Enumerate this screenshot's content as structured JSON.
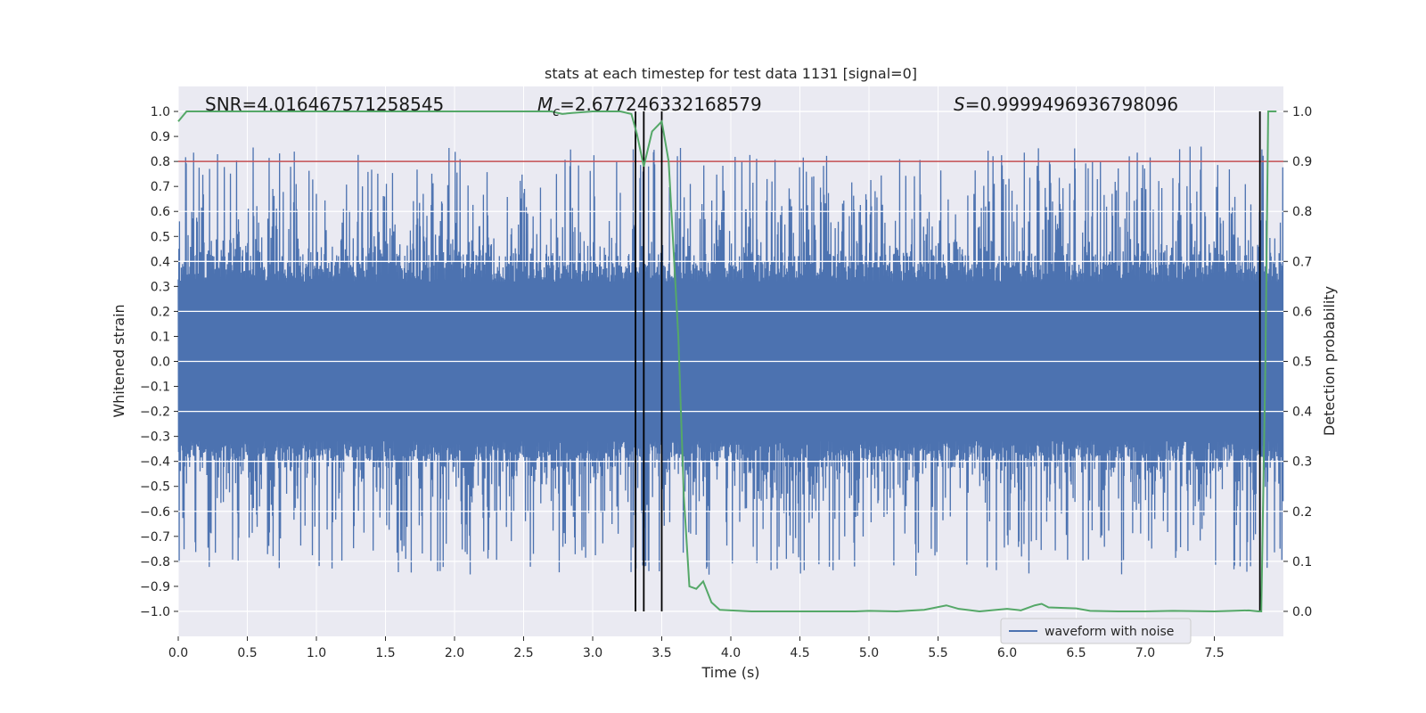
{
  "chart_data": {
    "type": "line",
    "title": "stats at each timestep for test data 1131 [signal=0]",
    "xlabel": "Time (s)",
    "ylabel": "Whitened strain",
    "y2label": "Detection probability",
    "xlim": [
      0.0,
      8.0
    ],
    "ylim": [
      -1.1,
      1.1
    ],
    "y2lim": [
      -0.05,
      1.05
    ],
    "xticks": [
      0.0,
      0.5,
      1.0,
      1.5,
      2.0,
      2.5,
      3.0,
      3.5,
      4.0,
      4.5,
      5.0,
      5.5,
      6.0,
      6.5,
      7.0,
      7.5
    ],
    "yticks": [
      -1.0,
      -0.9,
      -0.8,
      -0.7,
      -0.6,
      -0.5,
      -0.4,
      -0.3,
      -0.2,
      -0.1,
      0.0,
      0.1,
      0.2,
      0.3,
      0.4,
      0.5,
      0.6,
      0.7,
      0.8,
      0.9,
      1.0
    ],
    "y2ticks": [
      0.0,
      0.1,
      0.2,
      0.3,
      0.4,
      0.5,
      0.6,
      0.7,
      0.8,
      0.9,
      1.0
    ],
    "grid": true,
    "annotations": {
      "snr_text": "SNR=4.016467571258545",
      "mc_symbol": "M",
      "mc_subscript": "c",
      "mc_value": "=2.677246332168579",
      "s_symbol": "S",
      "s_value": "=0.9999496936798096"
    },
    "threshold": {
      "axis": "y2",
      "value": 0.9,
      "color": "#c44e52"
    },
    "vertical_lines": {
      "x": [
        3.31,
        3.37,
        3.5,
        7.83
      ],
      "ymin": -1.0,
      "ymax": 1.0,
      "color": "#000000"
    },
    "series": [
      {
        "name": "waveform with noise",
        "axis": "y",
        "color": "#4c72b0",
        "kind": "noise",
        "duration": 8.0,
        "core_amplitude": 0.4,
        "peak_amplitude": 0.84
      },
      {
        "name": "detection probability",
        "axis": "y2",
        "color": "#55a868",
        "x": [
          0.0,
          0.06,
          0.5,
          1.0,
          1.5,
          2.0,
          2.5,
          2.7,
          2.78,
          2.85,
          3.0,
          3.2,
          3.28,
          3.32,
          3.37,
          3.43,
          3.5,
          3.55,
          3.62,
          3.66,
          3.7,
          3.75,
          3.8,
          3.86,
          3.92,
          4.0,
          4.15,
          4.5,
          4.9,
          5.0,
          5.2,
          5.4,
          5.56,
          5.65,
          5.8,
          6.0,
          6.1,
          6.2,
          6.25,
          6.3,
          6.5,
          6.6,
          6.8,
          7.0,
          7.2,
          7.5,
          7.75,
          7.82,
          7.84,
          7.87,
          7.89,
          7.92,
          7.95
        ],
        "y": [
          0.98,
          1.0,
          1.0,
          1.0,
          1.0,
          1.0,
          1.0,
          1.0,
          0.995,
          0.997,
          1.0,
          1.0,
          0.995,
          0.955,
          0.89,
          0.96,
          0.98,
          0.9,
          0.55,
          0.23,
          0.05,
          0.045,
          0.06,
          0.018,
          0.003,
          0.002,
          0.0,
          0.0,
          0.0,
          0.001,
          0.0,
          0.003,
          0.012,
          0.005,
          0.0,
          0.005,
          0.002,
          0.012,
          0.015,
          0.008,
          0.006,
          0.001,
          0.0,
          0.0,
          0.001,
          0.0,
          0.002,
          0.0,
          0.0,
          0.5,
          1.0,
          1.0,
          1.0
        ]
      }
    ],
    "legend": {
      "location": "lower-right",
      "entries": [
        "waveform with noise"
      ]
    }
  }
}
